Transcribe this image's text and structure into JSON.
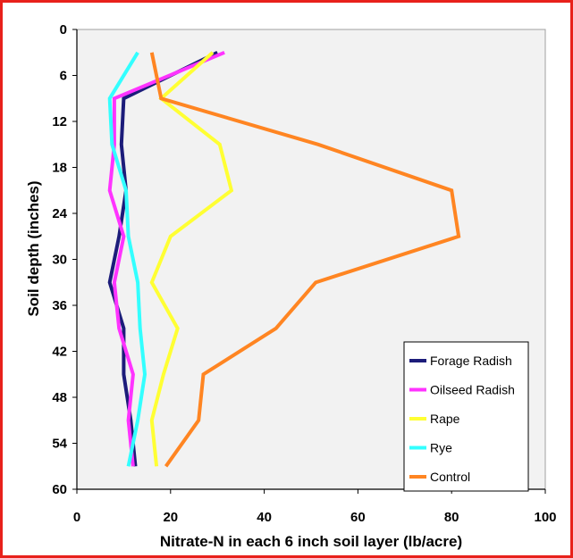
{
  "chart_data": {
    "type": "line",
    "orientation": "depth-profile",
    "xlabel": "Nitrate-N in each 6 inch soil layer (lb/acre)",
    "ylabel": "Soil depth (inches)",
    "xlim": [
      0,
      100
    ],
    "ylim": [
      0,
      60
    ],
    "y_inverted": true,
    "xticks": [
      0,
      20,
      40,
      60,
      80,
      100
    ],
    "yticks": [
      0,
      6,
      12,
      18,
      24,
      30,
      36,
      42,
      48,
      54,
      60
    ],
    "ytick_labels": [
      "0",
      "6",
      "12",
      "18",
      "24",
      "30",
      "36",
      "42",
      "48",
      "54",
      "60"
    ],
    "xtick_labels": [
      "0",
      "20",
      "40",
      "60",
      "80",
      "100"
    ],
    "plot_background": "#f2f2f2",
    "grid": false,
    "legend_position": "bottom-right",
    "depth": [
      3,
      9,
      15,
      21,
      27,
      33,
      39,
      45,
      51,
      57
    ],
    "series": [
      {
        "name": "Forage Radish",
        "color": "#1c1c7a",
        "values": [
          30,
          10,
          9.5,
          10.5,
          9,
          7,
          10,
          10,
          11.5,
          12.5
        ]
      },
      {
        "name": "Oilseed Radish",
        "color": "#ff33ff",
        "values": [
          31.5,
          8,
          8,
          7,
          10,
          8,
          9,
          12,
          11,
          12
        ]
      },
      {
        "name": "Rape",
        "color": "#ffff33",
        "values": [
          29,
          18,
          30.5,
          33,
          20,
          16,
          21.5,
          18.5,
          16,
          17
        ]
      },
      {
        "name": "Rye",
        "color": "#33ffff",
        "values": [
          13,
          7,
          7.5,
          10.5,
          11,
          13,
          13.5,
          14.5,
          13,
          11
        ]
      },
      {
        "name": "Control",
        "color": "#ff8522",
        "values": [
          16,
          18,
          51.5,
          80,
          81.5,
          51,
          42.5,
          27,
          26,
          19
        ]
      }
    ]
  }
}
